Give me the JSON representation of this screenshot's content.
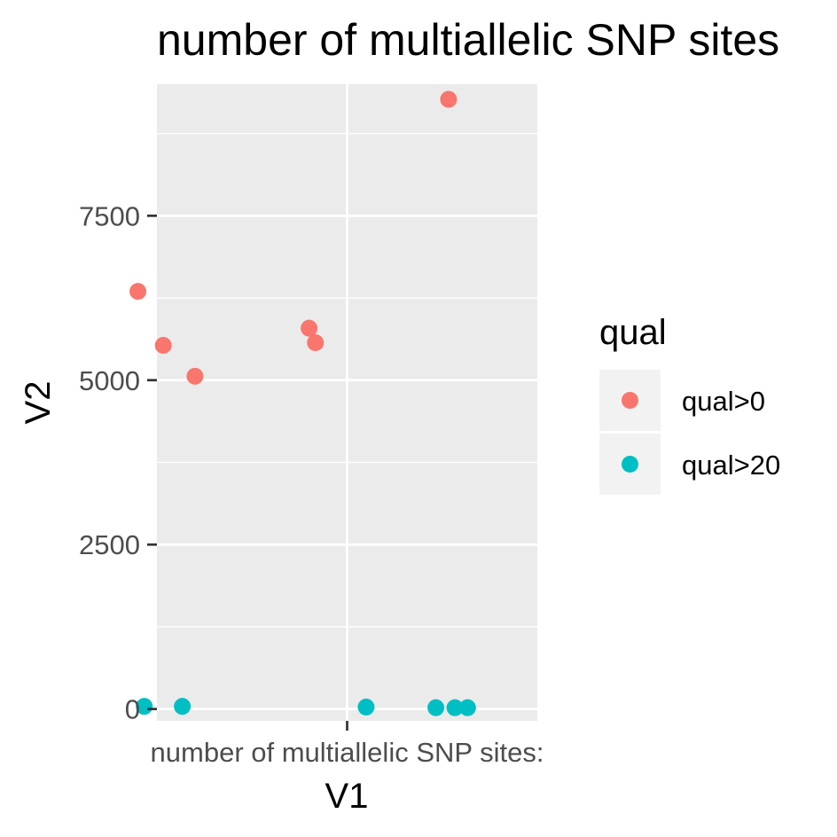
{
  "chart_data": {
    "type": "scatter",
    "title": "number of multiallelic SNP sites",
    "xlabel": "V1",
    "ylabel": "V2",
    "x_categories": [
      "number of multiallelic SNP sites:"
    ],
    "ylim": [
      -180,
      9500
    ],
    "y_ticks": [
      0,
      2500,
      5000,
      7500
    ],
    "y_tick_labels": [
      "0",
      "2500",
      "5000",
      "7500"
    ],
    "grid": true,
    "panel_background": "#ebebeb",
    "legend": {
      "title": "qual",
      "position": "right",
      "entries": [
        {
          "label": "qual>0",
          "color": "#f8766d"
        },
        {
          "label": "qual>20",
          "color": "#00bfc4"
        }
      ]
    },
    "series": [
      {
        "name": "qual>0",
        "color": "#f8766d",
        "x_jitter": [
          -0.33,
          -0.29,
          -0.24,
          -0.06,
          -0.05,
          0.16
        ],
        "values": [
          6350,
          5530,
          5060,
          5790,
          5570,
          9270
        ]
      },
      {
        "name": "qual>20",
        "color": "#00bfc4",
        "x_jitter": [
          -0.32,
          -0.26,
          0.03,
          0.14,
          0.17,
          0.19
        ],
        "values": [
          40,
          40,
          30,
          20,
          20,
          20
        ]
      }
    ]
  }
}
